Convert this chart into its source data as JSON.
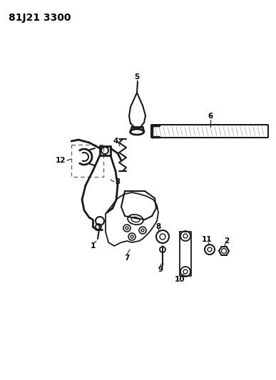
{
  "title": "81J21 3300",
  "background_color": "#ffffff",
  "line_color": "#1a1a1a",
  "label_color": "#000000",
  "fig_width": 3.87,
  "fig_height": 5.33,
  "dpi": 100
}
